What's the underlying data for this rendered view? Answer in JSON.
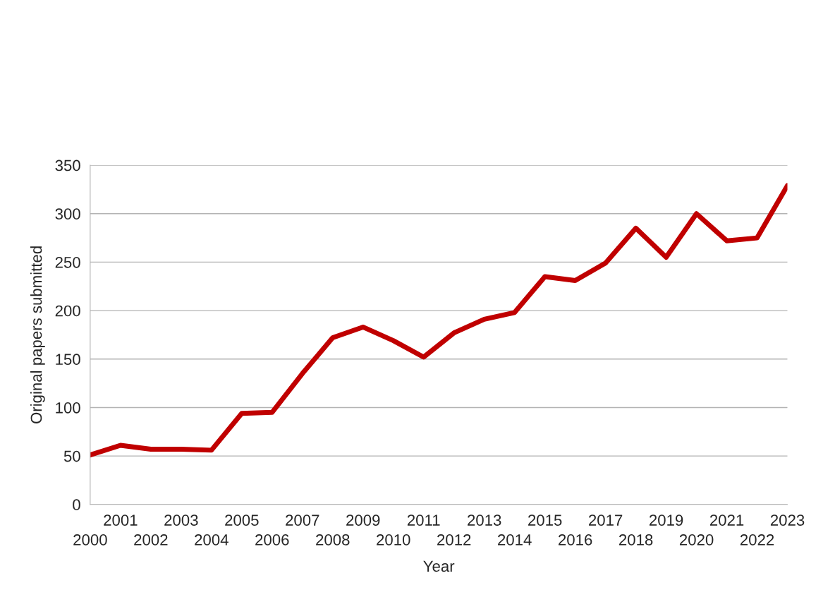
{
  "chart_data": {
    "type": "line",
    "xlabel": "Year",
    "ylabel": "Original papers submitted",
    "categories": [
      "2000",
      "2001",
      "2002",
      "2003",
      "2004",
      "2005",
      "2006",
      "2007",
      "2008",
      "2009",
      "2010",
      "2011",
      "2012",
      "2013",
      "2014",
      "2015",
      "2016",
      "2017",
      "2018",
      "2019",
      "2020",
      "2021",
      "2022",
      "2023"
    ],
    "series": [
      {
        "color": "#c00000",
        "values": [
          51,
          61,
          57,
          57,
          56,
          94,
          95,
          135,
          172,
          183,
          169,
          152,
          177,
          191,
          198,
          235,
          231,
          249,
          285,
          255,
          300,
          272,
          275,
          329
        ]
      }
    ],
    "ylim": [
      0,
      350
    ],
    "yticks": [
      0,
      50,
      100,
      150,
      200,
      250,
      300,
      350
    ],
    "grid": "y",
    "marker": "none",
    "line_style": "solid"
  }
}
